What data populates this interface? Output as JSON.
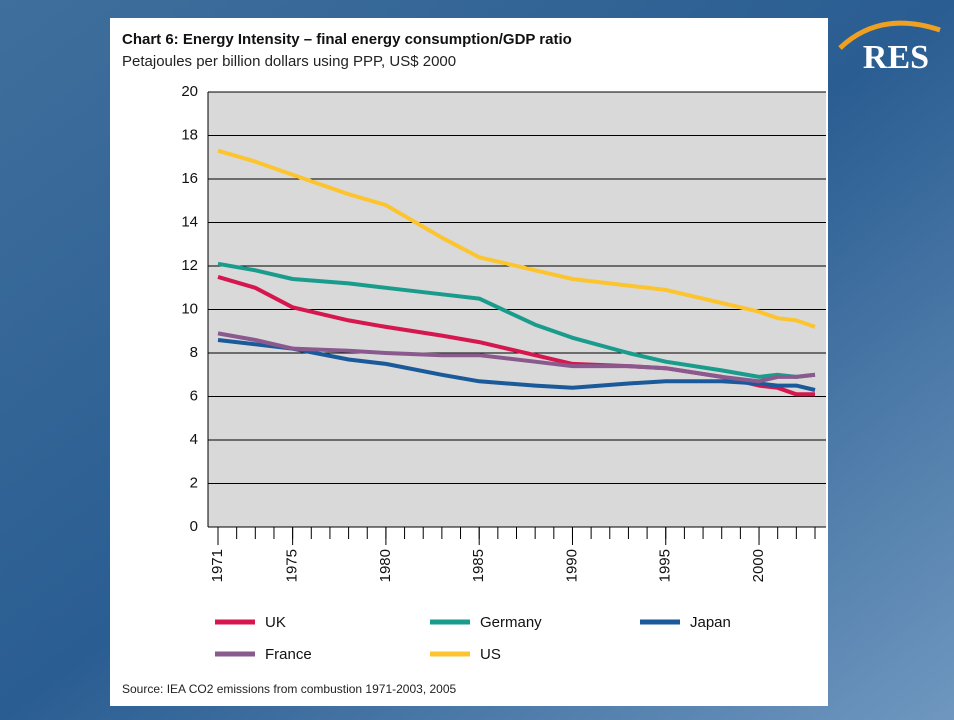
{
  "logo": "RES",
  "chart_data": {
    "type": "line",
    "title": "Chart 6: Energy Intensity – final energy consumption/GDP ratio",
    "subtitle": "Petajoules per billion dollars using PPP, US$ 2000",
    "source": "Source: IEA CO2 emissions from combustion 1971-2003, 2005",
    "x": [
      1971,
      1973,
      1975,
      1978,
      1980,
      1983,
      1985,
      1988,
      1990,
      1993,
      1995,
      1998,
      2000,
      2001,
      2002,
      2003
    ],
    "xlim": [
      1971,
      2003
    ],
    "xticks": [
      1971,
      1975,
      1980,
      1985,
      1990,
      1995,
      2000
    ],
    "ylim": [
      0,
      20
    ],
    "yticks": [
      0,
      2,
      4,
      6,
      8,
      10,
      12,
      14,
      16,
      18,
      20
    ],
    "grid": true,
    "series": [
      {
        "name": "UK",
        "color": "#d6174f",
        "values": [
          11.5,
          11.0,
          10.1,
          9.5,
          9.2,
          8.8,
          8.5,
          7.9,
          7.5,
          7.4,
          7.3,
          6.9,
          6.5,
          6.4,
          6.1,
          6.1
        ]
      },
      {
        "name": "Germany",
        "color": "#1a9c8c",
        "values": [
          12.1,
          11.8,
          11.4,
          11.2,
          11.0,
          10.7,
          10.5,
          9.3,
          8.7,
          8.0,
          7.6,
          7.2,
          6.9,
          7.0,
          6.9,
          7.0
        ]
      },
      {
        "name": "Japan",
        "color": "#1b5a9a",
        "values": [
          8.6,
          8.4,
          8.2,
          7.7,
          7.5,
          7.0,
          6.7,
          6.5,
          6.4,
          6.6,
          6.7,
          6.7,
          6.6,
          6.5,
          6.5,
          6.3
        ]
      },
      {
        "name": "France",
        "color": "#8a5a8e",
        "values": [
          8.9,
          8.6,
          8.2,
          8.1,
          8.0,
          7.9,
          7.9,
          7.6,
          7.4,
          7.4,
          7.3,
          6.9,
          6.7,
          6.9,
          6.9,
          7.0
        ]
      },
      {
        "name": "US",
        "color": "#fcc52f",
        "values": [
          17.3,
          16.8,
          16.2,
          15.3,
          14.8,
          13.3,
          12.4,
          11.8,
          11.4,
          11.1,
          10.9,
          10.3,
          9.9,
          9.6,
          9.5,
          9.2
        ]
      }
    ]
  }
}
